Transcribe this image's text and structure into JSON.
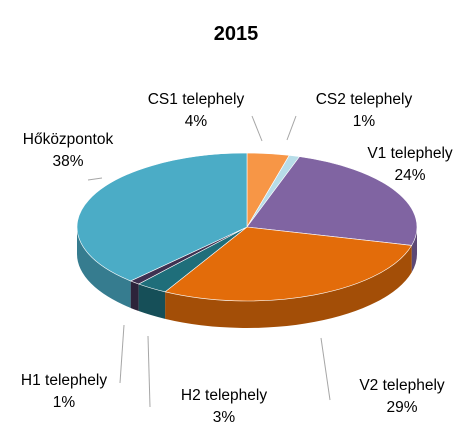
{
  "chart_data": {
    "type": "pie",
    "title": "2015",
    "slices": [
      {
        "name": "CS1 telephely",
        "value": 4,
        "label": "4%",
        "color": "#F79646"
      },
      {
        "name": "CS2 telephely",
        "value": 1,
        "label": "1%",
        "color": "#B7DDE8"
      },
      {
        "name": "V1 telephely",
        "value": 24,
        "label": "24%",
        "color": "#8064A2"
      },
      {
        "name": "V2 telephely",
        "value": 29,
        "label": "29%",
        "color": "#E36C0A"
      },
      {
        "name": "H2 telephely",
        "value": 3,
        "label": "3%",
        "color": "#1F6E7A"
      },
      {
        "name": "H1 telephely",
        "value": 1,
        "label": "1%",
        "color": "#3F3151"
      },
      {
        "name": "Hőközpontok",
        "value": 38,
        "label": "38%",
        "color": "#4BACC6"
      }
    ],
    "legend": "none",
    "data_labels": "outside with leader lines"
  }
}
